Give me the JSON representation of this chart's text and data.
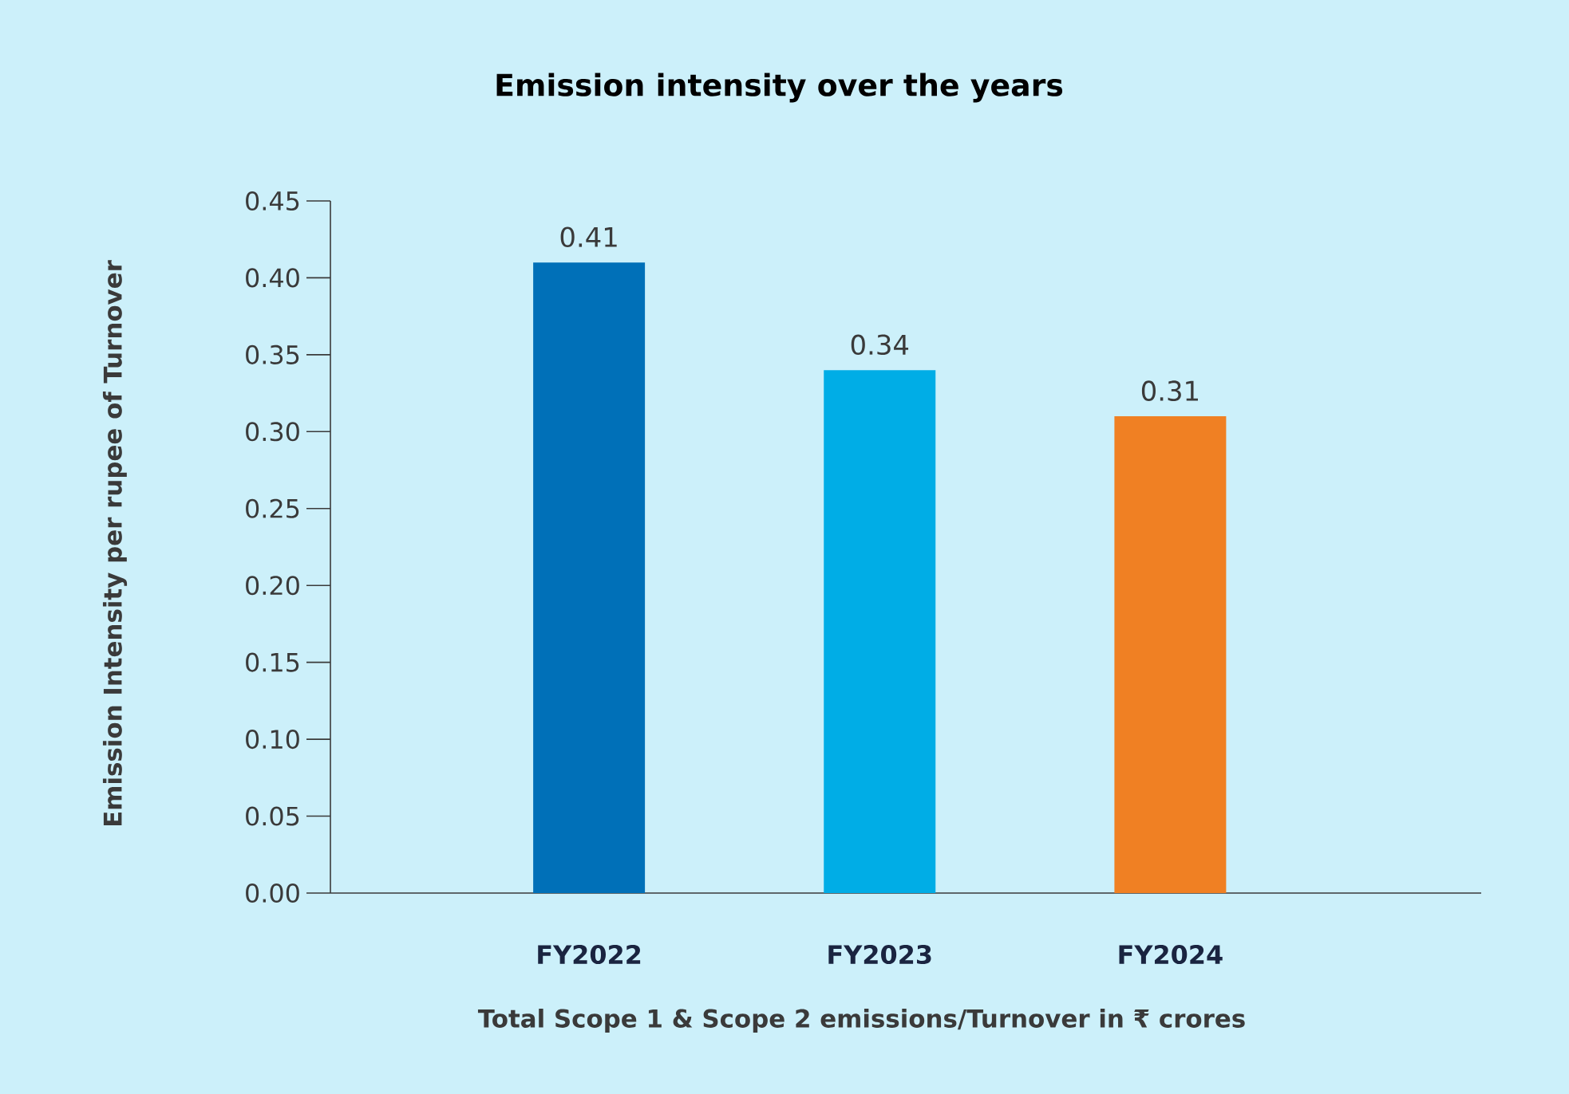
{
  "chart_data": {
    "type": "bar",
    "title": "Emission intensity over the years",
    "xlabel": "Total Scope 1 & Scope 2 emissions/Turnover in ₹ crores",
    "ylabel": "Emission Intensity per rupee of Turnover",
    "categories": [
      "FY2022",
      "FY2023",
      "FY2024"
    ],
    "values": [
      0.41,
      0.34,
      0.31
    ],
    "colors": [
      "#0070b8",
      "#00ade6",
      "#f08023"
    ],
    "ylim": [
      0,
      0.45
    ],
    "yticks": [
      {
        "value": 0,
        "label": "0.00"
      },
      {
        "value": 0.05,
        "label": "0.05"
      },
      {
        "value": 0.1,
        "label": "0.10"
      },
      {
        "value": 0.15,
        "label": "0.15"
      },
      {
        "value": 0.2,
        "label": "0.20"
      },
      {
        "value": 0.25,
        "label": "0.25"
      },
      {
        "value": 0.3,
        "label": "0.30"
      },
      {
        "value": 0.35,
        "label": "0.35"
      },
      {
        "value": 0.4,
        "label": "0.40"
      },
      {
        "value": 0.45,
        "label": "0.45"
      }
    ],
    "data_labels": true,
    "grid": false
  }
}
